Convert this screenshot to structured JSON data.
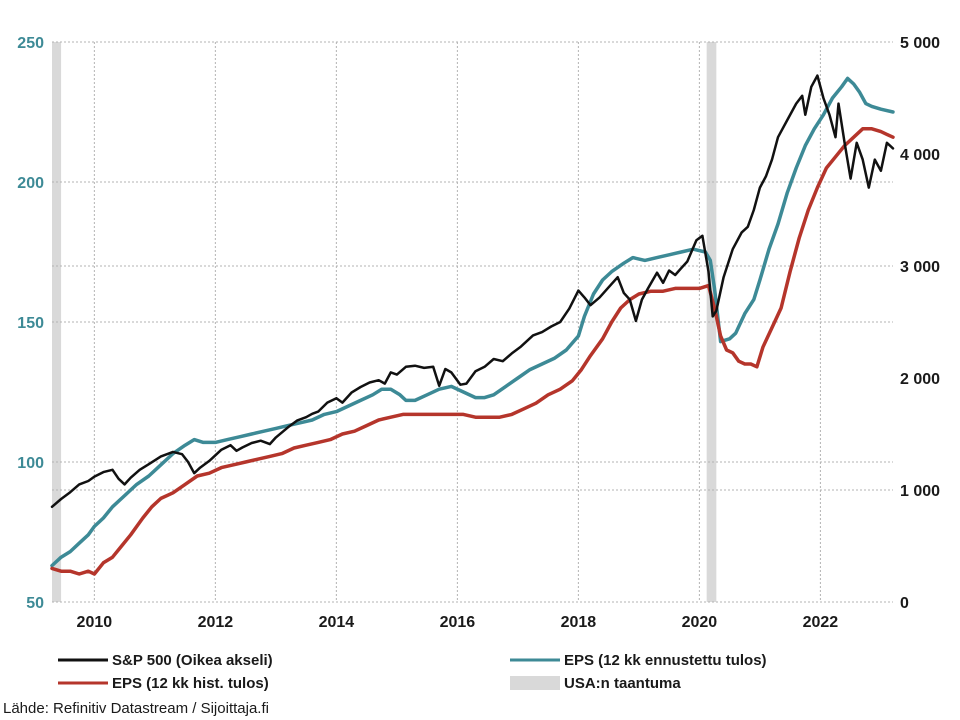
{
  "chart_data": {
    "type": "line",
    "title": "",
    "x_ticks": [
      "2010",
      "2012",
      "2014",
      "2016",
      "2018",
      "2020",
      "2022"
    ],
    "x_range": [
      2009.3,
      2023.2
    ],
    "y_left": {
      "range": [
        50,
        250
      ],
      "ticks": [
        "50",
        "100",
        "150",
        "200",
        "250"
      ]
    },
    "y_right": {
      "range": [
        0,
        5000
      ],
      "ticks": [
        "0",
        "1 000",
        "2 000",
        "3 000",
        "4 000",
        "5 000"
      ]
    },
    "grid": true,
    "legend_position": "bottom",
    "recessions": [
      {
        "label": "USA:n taantuma",
        "start": 2009.3,
        "end": 2009.45
      },
      {
        "label": "USA:n taantuma",
        "start": 2020.12,
        "end": 2020.28
      }
    ],
    "series": [
      {
        "name": "S&P 500 (Oikea akseli)",
        "axis": "right",
        "color": "#111111",
        "points": [
          [
            2009.3,
            850
          ],
          [
            2009.45,
            920
          ],
          [
            2009.6,
            980
          ],
          [
            2009.75,
            1050
          ],
          [
            2009.9,
            1080
          ],
          [
            2010.0,
            1120
          ],
          [
            2010.15,
            1160
          ],
          [
            2010.3,
            1180
          ],
          [
            2010.4,
            1100
          ],
          [
            2010.5,
            1050
          ],
          [
            2010.6,
            1110
          ],
          [
            2010.75,
            1180
          ],
          [
            2010.9,
            1230
          ],
          [
            2011.1,
            1300
          ],
          [
            2011.3,
            1340
          ],
          [
            2011.45,
            1320
          ],
          [
            2011.55,
            1250
          ],
          [
            2011.65,
            1150
          ],
          [
            2011.75,
            1200
          ],
          [
            2011.9,
            1260
          ],
          [
            2012.1,
            1360
          ],
          [
            2012.25,
            1400
          ],
          [
            2012.35,
            1350
          ],
          [
            2012.45,
            1380
          ],
          [
            2012.6,
            1420
          ],
          [
            2012.75,
            1440
          ],
          [
            2012.9,
            1410
          ],
          [
            2013.0,
            1470
          ],
          [
            2013.2,
            1560
          ],
          [
            2013.35,
            1620
          ],
          [
            2013.5,
            1650
          ],
          [
            2013.6,
            1680
          ],
          [
            2013.7,
            1700
          ],
          [
            2013.85,
            1780
          ],
          [
            2014.0,
            1820
          ],
          [
            2014.1,
            1780
          ],
          [
            2014.25,
            1870
          ],
          [
            2014.4,
            1920
          ],
          [
            2014.55,
            1960
          ],
          [
            2014.7,
            1980
          ],
          [
            2014.8,
            1950
          ],
          [
            2014.9,
            2050
          ],
          [
            2015.0,
            2030
          ],
          [
            2015.15,
            2100
          ],
          [
            2015.3,
            2110
          ],
          [
            2015.45,
            2090
          ],
          [
            2015.6,
            2100
          ],
          [
            2015.7,
            1930
          ],
          [
            2015.8,
            2080
          ],
          [
            2015.9,
            2050
          ],
          [
            2016.05,
            1940
          ],
          [
            2016.15,
            1950
          ],
          [
            2016.3,
            2060
          ],
          [
            2016.45,
            2100
          ],
          [
            2016.6,
            2170
          ],
          [
            2016.75,
            2150
          ],
          [
            2016.9,
            2220
          ],
          [
            2017.05,
            2280
          ],
          [
            2017.25,
            2380
          ],
          [
            2017.4,
            2410
          ],
          [
            2017.55,
            2460
          ],
          [
            2017.7,
            2500
          ],
          [
            2017.85,
            2620
          ],
          [
            2018.0,
            2780
          ],
          [
            2018.1,
            2720
          ],
          [
            2018.2,
            2650
          ],
          [
            2018.35,
            2720
          ],
          [
            2018.5,
            2810
          ],
          [
            2018.65,
            2900
          ],
          [
            2018.75,
            2760
          ],
          [
            2018.85,
            2700
          ],
          [
            2018.95,
            2510
          ],
          [
            2019.05,
            2700
          ],
          [
            2019.15,
            2800
          ],
          [
            2019.3,
            2940
          ],
          [
            2019.4,
            2850
          ],
          [
            2019.5,
            2960
          ],
          [
            2019.6,
            2920
          ],
          [
            2019.7,
            2980
          ],
          [
            2019.8,
            3040
          ],
          [
            2019.95,
            3230
          ],
          [
            2020.05,
            3270
          ],
          [
            2020.15,
            2950
          ],
          [
            2020.22,
            2550
          ],
          [
            2020.28,
            2600
          ],
          [
            2020.4,
            2900
          ],
          [
            2020.55,
            3150
          ],
          [
            2020.7,
            3300
          ],
          [
            2020.8,
            3350
          ],
          [
            2020.9,
            3500
          ],
          [
            2021.0,
            3700
          ],
          [
            2021.1,
            3800
          ],
          [
            2021.2,
            3950
          ],
          [
            2021.3,
            4150
          ],
          [
            2021.45,
            4300
          ],
          [
            2021.6,
            4450
          ],
          [
            2021.7,
            4520
          ],
          [
            2021.75,
            4350
          ],
          [
            2021.85,
            4600
          ],
          [
            2021.95,
            4700
          ],
          [
            2022.05,
            4500
          ],
          [
            2022.15,
            4350
          ],
          [
            2022.25,
            4150
          ],
          [
            2022.3,
            4450
          ],
          [
            2022.4,
            4100
          ],
          [
            2022.5,
            3780
          ],
          [
            2022.6,
            4100
          ],
          [
            2022.7,
            3950
          ],
          [
            2022.8,
            3700
          ],
          [
            2022.9,
            3950
          ],
          [
            2023.0,
            3850
          ],
          [
            2023.1,
            4100
          ],
          [
            2023.2,
            4050
          ]
        ]
      },
      {
        "name": "EPS (12 kk ennustettu tulos)",
        "axis": "left",
        "color": "#3d8a96",
        "points": [
          [
            2009.3,
            63
          ],
          [
            2009.45,
            66
          ],
          [
            2009.6,
            68
          ],
          [
            2009.75,
            71
          ],
          [
            2009.9,
            74
          ],
          [
            2010.0,
            77
          ],
          [
            2010.15,
            80
          ],
          [
            2010.3,
            84
          ],
          [
            2010.5,
            88
          ],
          [
            2010.7,
            92
          ],
          [
            2010.9,
            95
          ],
          [
            2011.1,
            99
          ],
          [
            2011.3,
            103
          ],
          [
            2011.5,
            106
          ],
          [
            2011.65,
            108
          ],
          [
            2011.8,
            107
          ],
          [
            2012.0,
            107
          ],
          [
            2012.2,
            108
          ],
          [
            2012.4,
            109
          ],
          [
            2012.6,
            110
          ],
          [
            2012.8,
            111
          ],
          [
            2013.0,
            112
          ],
          [
            2013.2,
            113
          ],
          [
            2013.4,
            114
          ],
          [
            2013.6,
            115
          ],
          [
            2013.8,
            117
          ],
          [
            2014.0,
            118
          ],
          [
            2014.2,
            120
          ],
          [
            2014.4,
            122
          ],
          [
            2014.6,
            124
          ],
          [
            2014.75,
            126
          ],
          [
            2014.9,
            126
          ],
          [
            2015.05,
            124
          ],
          [
            2015.15,
            122
          ],
          [
            2015.3,
            122
          ],
          [
            2015.5,
            124
          ],
          [
            2015.7,
            126
          ],
          [
            2015.9,
            127
          ],
          [
            2016.1,
            125
          ],
          [
            2016.3,
            123
          ],
          [
            2016.45,
            123
          ],
          [
            2016.6,
            124
          ],
          [
            2016.8,
            127
          ],
          [
            2017.0,
            130
          ],
          [
            2017.2,
            133
          ],
          [
            2017.4,
            135
          ],
          [
            2017.6,
            137
          ],
          [
            2017.8,
            140
          ],
          [
            2018.0,
            145
          ],
          [
            2018.1,
            152
          ],
          [
            2018.25,
            160
          ],
          [
            2018.4,
            165
          ],
          [
            2018.55,
            168
          ],
          [
            2018.75,
            171
          ],
          [
            2018.9,
            173
          ],
          [
            2019.1,
            172
          ],
          [
            2019.3,
            173
          ],
          [
            2019.5,
            174
          ],
          [
            2019.7,
            175
          ],
          [
            2019.9,
            176
          ],
          [
            2020.1,
            175
          ],
          [
            2020.18,
            172
          ],
          [
            2020.25,
            162
          ],
          [
            2020.35,
            143
          ],
          [
            2020.5,
            144
          ],
          [
            2020.6,
            146
          ],
          [
            2020.75,
            153
          ],
          [
            2020.9,
            158
          ],
          [
            2021.0,
            165
          ],
          [
            2021.15,
            176
          ],
          [
            2021.3,
            185
          ],
          [
            2021.45,
            196
          ],
          [
            2021.6,
            205
          ],
          [
            2021.75,
            213
          ],
          [
            2021.9,
            219
          ],
          [
            2022.05,
            224
          ],
          [
            2022.2,
            230
          ],
          [
            2022.35,
            234
          ],
          [
            2022.45,
            237
          ],
          [
            2022.55,
            235
          ],
          [
            2022.65,
            232
          ],
          [
            2022.75,
            228
          ],
          [
            2022.85,
            227
          ],
          [
            2023.0,
            226
          ],
          [
            2023.2,
            225
          ]
        ]
      },
      {
        "name": "EPS (12 kk hist. tulos)",
        "axis": "left",
        "color": "#b5352b",
        "points": [
          [
            2009.3,
            62
          ],
          [
            2009.45,
            61
          ],
          [
            2009.6,
            61
          ],
          [
            2009.75,
            60
          ],
          [
            2009.9,
            61
          ],
          [
            2010.0,
            60
          ],
          [
            2010.15,
            64
          ],
          [
            2010.3,
            66
          ],
          [
            2010.45,
            70
          ],
          [
            2010.6,
            74
          ],
          [
            2010.8,
            80
          ],
          [
            2010.95,
            84
          ],
          [
            2011.1,
            87
          ],
          [
            2011.3,
            89
          ],
          [
            2011.5,
            92
          ],
          [
            2011.7,
            95
          ],
          [
            2011.9,
            96
          ],
          [
            2012.1,
            98
          ],
          [
            2012.3,
            99
          ],
          [
            2012.5,
            100
          ],
          [
            2012.7,
            101
          ],
          [
            2012.9,
            102
          ],
          [
            2013.1,
            103
          ],
          [
            2013.3,
            105
          ],
          [
            2013.5,
            106
          ],
          [
            2013.7,
            107
          ],
          [
            2013.9,
            108
          ],
          [
            2014.1,
            110
          ],
          [
            2014.3,
            111
          ],
          [
            2014.5,
            113
          ],
          [
            2014.7,
            115
          ],
          [
            2014.9,
            116
          ],
          [
            2015.1,
            117
          ],
          [
            2015.3,
            117
          ],
          [
            2015.5,
            117
          ],
          [
            2015.7,
            117
          ],
          [
            2015.9,
            117
          ],
          [
            2016.1,
            117
          ],
          [
            2016.3,
            116
          ],
          [
            2016.5,
            116
          ],
          [
            2016.7,
            116
          ],
          [
            2016.9,
            117
          ],
          [
            2017.1,
            119
          ],
          [
            2017.3,
            121
          ],
          [
            2017.5,
            124
          ],
          [
            2017.7,
            126
          ],
          [
            2017.9,
            129
          ],
          [
            2018.05,
            133
          ],
          [
            2018.2,
            138
          ],
          [
            2018.4,
            144
          ],
          [
            2018.55,
            150
          ],
          [
            2018.7,
            155
          ],
          [
            2018.85,
            158
          ],
          [
            2019.0,
            160
          ],
          [
            2019.2,
            161
          ],
          [
            2019.4,
            161
          ],
          [
            2019.6,
            162
          ],
          [
            2019.8,
            162
          ],
          [
            2020.0,
            162
          ],
          [
            2020.15,
            163
          ],
          [
            2020.25,
            155
          ],
          [
            2020.35,
            145
          ],
          [
            2020.45,
            140
          ],
          [
            2020.55,
            139
          ],
          [
            2020.65,
            136
          ],
          [
            2020.75,
            135
          ],
          [
            2020.85,
            135
          ],
          [
            2020.95,
            134
          ],
          [
            2021.05,
            141
          ],
          [
            2021.2,
            148
          ],
          [
            2021.35,
            155
          ],
          [
            2021.5,
            168
          ],
          [
            2021.65,
            180
          ],
          [
            2021.8,
            190
          ],
          [
            2021.95,
            198
          ],
          [
            2022.1,
            205
          ],
          [
            2022.25,
            209
          ],
          [
            2022.4,
            213
          ],
          [
            2022.55,
            216
          ],
          [
            2022.7,
            219
          ],
          [
            2022.85,
            219
          ],
          [
            2023.0,
            218
          ],
          [
            2023.1,
            217
          ],
          [
            2023.2,
            216
          ]
        ]
      }
    ]
  },
  "legend": {
    "sp500": "S&P 500 (Oikea akseli)",
    "eps_hist": "EPS (12 kk hist. tulos)",
    "eps_forecast": "EPS (12 kk ennustettu tulos)",
    "recession": "USA:n taantuma"
  },
  "source": "Lähde: Refinitiv Datastream / Sijoittaja.fi",
  "colors": {
    "sp500": "#111111",
    "eps_forecast": "#3d8a96",
    "eps_hist": "#b5352b",
    "recession": "#d9d9d9",
    "grid": "#b3b3b3"
  }
}
